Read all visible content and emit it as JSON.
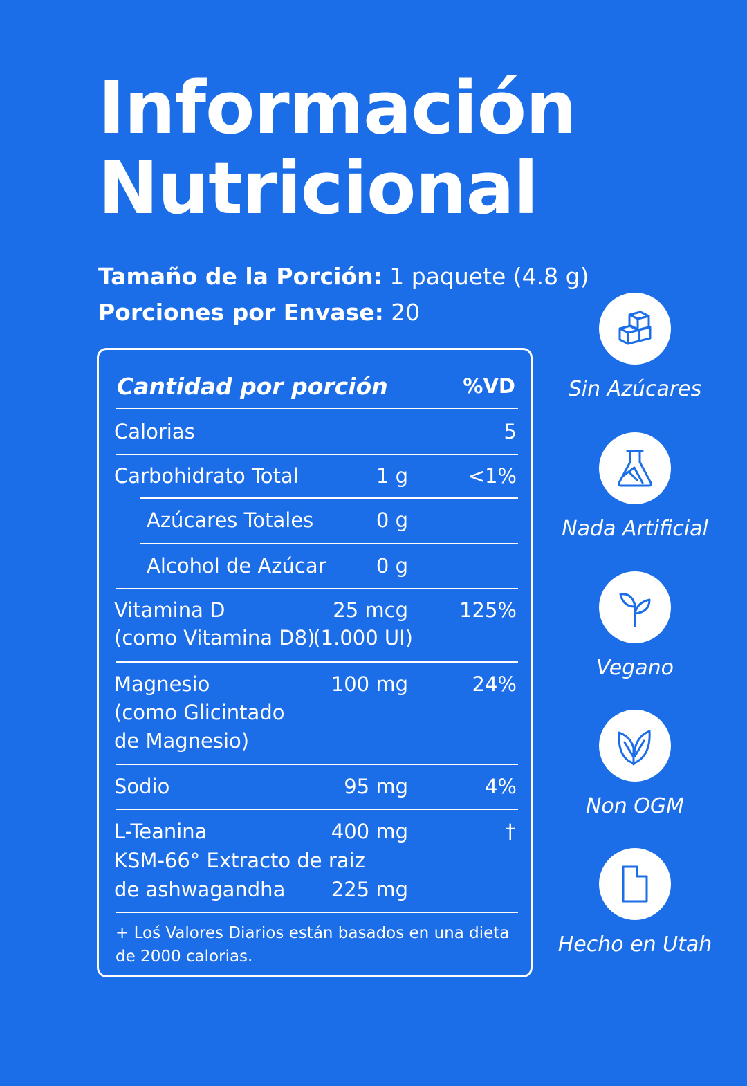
{
  "title": {
    "line1": "Información",
    "line2": "Nutricional"
  },
  "serving": {
    "size_label": "Tamaño de la Porción:",
    "size_value": " 1 paquete (4.8 g)",
    "servings_label": "Porciones por Envase:",
    "servings_value": " 20"
  },
  "panel": {
    "header_amount": "Cantidad por porción",
    "header_dv": "%VD",
    "rows": [
      {
        "name": "Calorias",
        "amount": "",
        "dv": "5"
      },
      {
        "name": "Carbohidrato Total",
        "amount": "1 g",
        "dv": "<1%"
      },
      {
        "name": "Azúcares Totales",
        "amount": "0 g",
        "dv": ""
      },
      {
        "name": "Alcohol de Azúcar",
        "amount": "0 g",
        "dv": ""
      },
      {
        "name": "Vitamina D",
        "name2": "(como Vitamina D8)",
        "amount": "25 mcg",
        "amount2": "(1.000 UI)",
        "dv": "125%"
      },
      {
        "name": "Magnesio",
        "name2": "(como Glicintado",
        "name3": "de Magnesio)",
        "amount": "100 mg",
        "dv": "24%"
      },
      {
        "name": "Sodio",
        "amount": "95 mg",
        "dv": "4%"
      },
      {
        "name": "L-Teanina",
        "name2": "KSM-66° Extracto de raiz",
        "name3": "de ashwagandha",
        "amount": "400 mg",
        "amount3": "225 mg",
        "dv": "†"
      }
    ],
    "footnote_line1": "+ Loś Valores Diarios están basados en una dieta",
    "footnote_line2": "de 2000 calorias."
  },
  "badges": [
    {
      "label": "Sin Azúcares",
      "icon": "sugar-cubes-icon"
    },
    {
      "label": "Nada Artificial",
      "icon": "flask-icon"
    },
    {
      "label": "Vegano",
      "icon": "sprout-icon"
    },
    {
      "label": "Non OGM",
      "icon": "leaves-icon"
    },
    {
      "label": "Hecho en Utah",
      "icon": "utah-state-icon"
    }
  ],
  "colors": {
    "background": "#1c6ee8",
    "accent": "#ffffff"
  }
}
